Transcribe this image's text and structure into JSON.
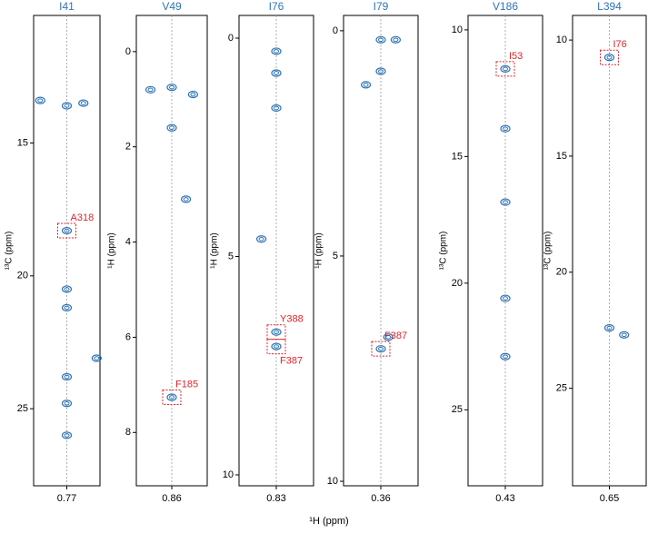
{
  "xlabel": "¹H (ppm)",
  "chart_data": [
    {
      "type": "scatter",
      "title": "I41",
      "ylabel": "¹³C (ppm)",
      "xlim": [
        0.82,
        0.72
      ],
      "xticks": [
        0.77
      ],
      "ylim": [
        10.2,
        27.9
      ],
      "yticks": [
        15,
        20,
        25
      ],
      "color": "#2f74b5",
      "x": [
        0.77,
        0.745,
        0.81,
        0.77,
        0.77,
        0.77,
        0.77,
        0.77,
        0.77,
        0.725
      ],
      "y": [
        13.6,
        13.5,
        13.4,
        18.3,
        20.5,
        21.2,
        23.8,
        24.8,
        26.0,
        23.1
      ],
      "annotations": [
        {
          "text": "A318",
          "x": 0.77,
          "y": 18.3
        }
      ],
      "annotation_color": "#e0242b"
    },
    {
      "type": "scatter",
      "title": "V49",
      "ylabel": "¹H (ppm)",
      "xlim": [
        0.91,
        0.81
      ],
      "xticks": [
        0.86
      ],
      "ylim": [
        -0.76,
        9.12
      ],
      "yticks": [
        0,
        2,
        4,
        6,
        8
      ],
      "color": "#2f74b5",
      "x": [
        0.86,
        0.83,
        0.89,
        0.86,
        0.84,
        0.86
      ],
      "y": [
        0.75,
        0.9,
        0.8,
        1.6,
        3.1,
        7.26
      ],
      "annotations": [
        {
          "text": "F185",
          "x": 0.86,
          "y": 7.26
        }
      ],
      "annotation_color": "#e0242b"
    },
    {
      "type": "scatter",
      "title": "I76",
      "ylabel": "¹H (ppm)",
      "xlim": [
        0.88,
        0.78
      ],
      "xticks": [
        0.83
      ],
      "ylim": [
        -0.52,
        10.25
      ],
      "yticks": [
        0,
        5,
        10
      ],
      "color": "#2f74b5",
      "x": [
        0.83,
        0.83,
        0.83,
        0.85,
        0.83,
        0.83
      ],
      "y": [
        0.3,
        0.8,
        1.6,
        4.6,
        6.73,
        7.06
      ],
      "annotations": [
        {
          "text": "Y388",
          "x": 0.83,
          "y": 6.73
        },
        {
          "text": "F387",
          "x": 0.83,
          "y": 7.06
        }
      ],
      "annotation_color": "#e0242b"
    },
    {
      "type": "scatter",
      "title": "I79",
      "ylabel": "¹H (ppm)",
      "xlim": [
        0.41,
        0.31
      ],
      "xticks": [
        0.36
      ],
      "ylim": [
        -0.34,
        10.1
      ],
      "yticks": [
        0,
        5,
        10
      ],
      "color": "#2f74b5",
      "x": [
        0.36,
        0.34,
        0.36,
        0.38,
        0.35,
        0.36
      ],
      "y": [
        0.2,
        0.2,
        0.9,
        1.2,
        6.8,
        7.06
      ],
      "annotations": [
        {
          "text": "F387",
          "x": 0.36,
          "y": 7.06
        }
      ],
      "annotation_color": "#e0242b"
    },
    {
      "type": "scatter",
      "title": "V186",
      "ylabel": "¹³C (ppm)",
      "xlim": [
        0.48,
        0.38
      ],
      "xticks": [
        0.43
      ],
      "ylim": [
        9.43,
        28.0
      ],
      "yticks": [
        10,
        15,
        20,
        25
      ],
      "color": "#2f74b5",
      "x": [
        0.43,
        0.43,
        0.43,
        0.43,
        0.43
      ],
      "y": [
        11.54,
        13.9,
        16.8,
        20.6,
        22.9
      ],
      "annotations": [
        {
          "text": "I53",
          "x": 0.43,
          "y": 11.54
        }
      ],
      "annotation_color": "#e0242b"
    },
    {
      "type": "scatter",
      "title": "L394",
      "ylabel": "¹³C (ppm)",
      "xlim": [
        0.7,
        0.6
      ],
      "xticks": [
        0.65
      ],
      "ylim": [
        8.94,
        29.2
      ],
      "yticks": [
        10,
        15,
        20,
        25
      ],
      "color": "#2f74b5",
      "x": [
        0.65,
        0.65,
        0.63
      ],
      "y": [
        10.75,
        22.4,
        22.7
      ],
      "annotations": [
        {
          "text": "I76",
          "x": 0.65,
          "y": 10.75
        }
      ],
      "annotation_color": "#e0242b"
    }
  ]
}
